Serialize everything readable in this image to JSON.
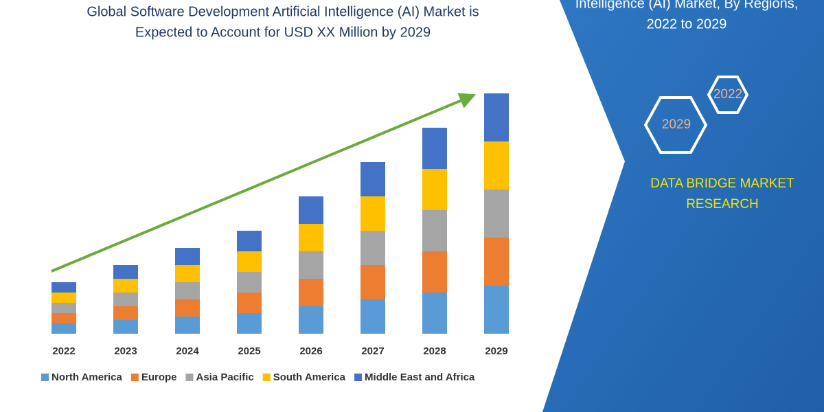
{
  "chart_data": {
    "type": "stacked-bar",
    "title": [
      "Global Software Development Artificial Intelligence (AI) Market is",
      "Expected to Account for USD XX Million by 2029"
    ],
    "categories": [
      "2022",
      "2023",
      "2024",
      "2025",
      "2026",
      "2027",
      "2028",
      "2029"
    ],
    "series": [
      {
        "name": "North America",
        "color": "#5b9bd5",
        "values": [
          3,
          4,
          5,
          6,
          8,
          10,
          12,
          14
        ]
      },
      {
        "name": "Europe",
        "color": "#ed7d31",
        "values": [
          3,
          4,
          5,
          6,
          8,
          10,
          12,
          14
        ]
      },
      {
        "name": "Asia Pacific",
        "color": "#a5a5a5",
        "values": [
          3,
          4,
          5,
          6,
          8,
          10,
          12,
          14
        ]
      },
      {
        "name": "South America",
        "color": "#ffc000",
        "values": [
          3,
          4,
          5,
          6,
          8,
          10,
          12,
          14
        ]
      },
      {
        "name": "Middle East and Africa",
        "color": "#4472c4",
        "values": [
          3,
          4,
          5,
          6,
          8,
          10,
          12,
          14
        ]
      }
    ],
    "ylim": [
      0,
      70
    ],
    "trend_arrow_color": "#6aac3c"
  },
  "side_panel": {
    "heading": [
      "Intelligence (AI) Market, By Regions,",
      "2022 to 2029"
    ],
    "badges": [
      "2022",
      "2029"
    ],
    "brand": [
      "DATA BRIDGE MARKET",
      "RESEARCH"
    ]
  }
}
